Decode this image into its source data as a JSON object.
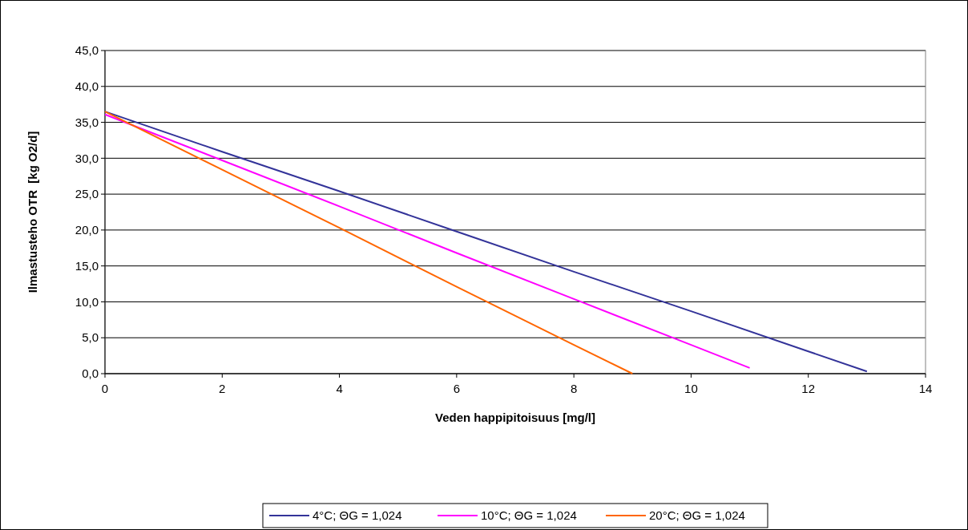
{
  "chart_data": {
    "type": "line",
    "xlabel": "Veden happipitoisuus [mg/l]",
    "ylabel": "Ilmastusteho OTR  [kg O2/d]",
    "xlim": [
      0,
      14
    ],
    "xticks": [
      0,
      2,
      4,
      6,
      8,
      10,
      12,
      14
    ],
    "ylim": [
      0,
      45
    ],
    "yticks": [
      {
        "value": 0,
        "label": "0,0"
      },
      {
        "value": 5,
        "label": "5,0"
      },
      {
        "value": 10,
        "label": "10,0"
      },
      {
        "value": 15,
        "label": "15,0"
      },
      {
        "value": 20,
        "label": "20,0"
      },
      {
        "value": 25,
        "label": "25,0"
      },
      {
        "value": 30,
        "label": "30,0"
      },
      {
        "value": 35,
        "label": "35,0"
      },
      {
        "value": 40,
        "label": "40,0"
      },
      {
        "value": 45,
        "label": "45,0"
      }
    ],
    "grid": "y",
    "legend": "bottom",
    "marker": "none",
    "series": [
      {
        "name": "4°C; ΘG = 1,024",
        "color": "#333399",
        "x": [
          0,
          2,
          4,
          6,
          8,
          10,
          12,
          13
        ],
        "values": [
          36.5,
          30.9,
          25.4,
          19.8,
          14.2,
          8.7,
          3.1,
          0.3
        ]
      },
      {
        "name": "10°C; ΘG = 1,024",
        "color": "#ff00ff",
        "x": [
          0,
          2,
          4,
          6,
          8,
          10,
          11
        ],
        "values": [
          36.1,
          29.7,
          23.3,
          16.8,
          10.4,
          4.0,
          0.8
        ]
      },
      {
        "name": "20°C; ΘG = 1,024",
        "color": "#ff6600",
        "x": [
          0,
          2,
          4,
          6,
          8,
          9
        ],
        "values": [
          36.5,
          28.4,
          20.3,
          12.1,
          4.0,
          0.0
        ]
      }
    ]
  }
}
